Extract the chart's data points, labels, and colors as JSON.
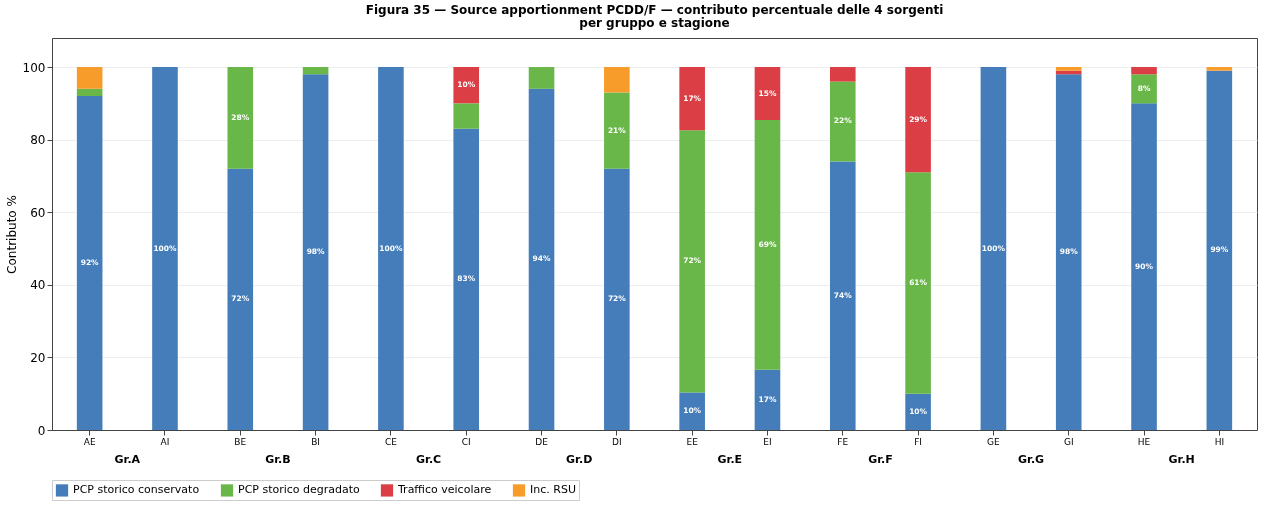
{
  "chart_data": {
    "type": "bar",
    "stacked": true,
    "title": "Figura 35 — Source apportionment PCDD/F — contributo percentuale delle 4 sorgenti",
    "subtitle": "per gruppo e stagione",
    "ylabel": "Contributo %",
    "categories": [
      "AE",
      "AI",
      "BE",
      "BI",
      "CE",
      "CI",
      "DE",
      "DI",
      "EE",
      "EI",
      "FE",
      "FI",
      "GE",
      "GI",
      "HE",
      "HI"
    ],
    "series": [
      {
        "name": "PCP storico conservato",
        "color": "#3a76b5",
        "values": [
          92,
          100,
          72,
          98,
          100,
          83,
          94,
          72,
          10.3,
          16.6,
          74,
          10,
          100,
          98,
          90,
          99
        ],
        "value_labels": [
          "92%",
          "100%",
          "72%",
          "98%",
          "100%",
          "83%",
          "94%",
          "72%",
          "10%",
          "17%",
          "74%",
          "10%",
          "100%",
          "98%",
          "90%",
          "99%"
        ]
      },
      {
        "name": "PCP storico degradato",
        "color": "#62b33f",
        "values": [
          2,
          0,
          28,
          2,
          0,
          7,
          6,
          21,
          72.3,
          68.8,
          22,
          61,
          0,
          0,
          8,
          0
        ],
        "value_labels": [
          null,
          null,
          "28%",
          null,
          null,
          null,
          null,
          "21%",
          "72%",
          "69%",
          "22%",
          "61%",
          null,
          null,
          "8%",
          null
        ]
      },
      {
        "name": "Traffico veicolare",
        "color": "#d9343a",
        "values": [
          0,
          0,
          0,
          0,
          0,
          10,
          0,
          0,
          17.4,
          14.6,
          4,
          29,
          0,
          1,
          2,
          0
        ],
        "value_labels": [
          null,
          null,
          null,
          null,
          null,
          "10%",
          null,
          null,
          "17%",
          "15%",
          null,
          "29%",
          null,
          null,
          null,
          null
        ]
      },
      {
        "name": "Inc. RSU",
        "color": "#f7961f",
        "values": [
          6,
          0,
          0,
          0,
          0,
          0,
          0,
          7,
          0,
          0,
          0,
          0,
          0,
          1,
          0,
          1
        ],
        "value_labels": [
          null,
          null,
          null,
          null,
          null,
          null,
          null,
          null,
          null,
          null,
          null,
          null,
          null,
          null,
          null,
          null
        ]
      }
    ],
    "annotations": [
      "Gr.A",
      "Gr.B",
      "Gr.C",
      "Gr.D",
      "Gr.E",
      "Gr.F",
      "Gr.G",
      "Gr.H"
    ],
    "ylim": [
      0,
      108
    ],
    "yticks": [
      0,
      20,
      40,
      60,
      80,
      100
    ],
    "grid": "y",
    "legend": "bottom"
  }
}
